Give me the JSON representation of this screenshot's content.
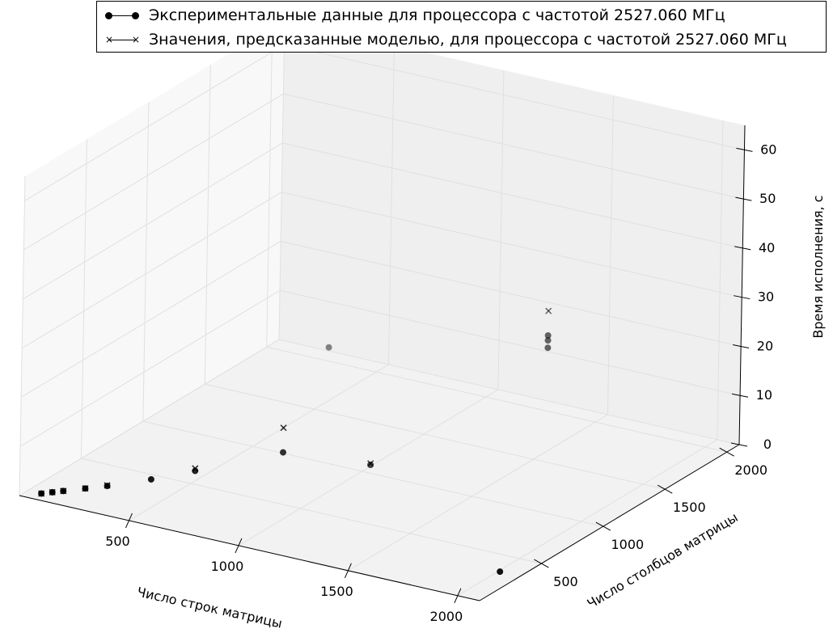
{
  "chart_data": {
    "type": "scatter",
    "title": "",
    "xlabel": "Число строк матрицы",
    "ylabel": "Число столбцов матрицы",
    "zlabel": "Время исполнения, с",
    "x_ticks": [
      "500",
      "1000",
      "1500",
      "2000"
    ],
    "y_ticks": [
      "500",
      "1000",
      "1500",
      "2000"
    ],
    "z_ticks": [
      "0",
      "10",
      "20",
      "30",
      "40",
      "50",
      "60"
    ],
    "xlim": [
      0,
      2100
    ],
    "ylim": [
      0,
      2100
    ],
    "zlim": [
      0,
      65
    ],
    "grid": true,
    "legend_position": "top",
    "series": [
      {
        "name": "Экспериментальные данные для процессора с частотой 2527.060 МГц",
        "marker": "circle",
        "points": [
          {
            "x": 64,
            "y": 64,
            "z": 0.1
          },
          {
            "x": 96,
            "y": 96,
            "z": 0.2
          },
          {
            "x": 128,
            "y": 128,
            "z": 0.3
          },
          {
            "x": 192,
            "y": 192,
            "z": 0.5
          },
          {
            "x": 256,
            "y": 256,
            "z": 0.7
          },
          {
            "x": 384,
            "y": 384,
            "z": 1.4
          },
          {
            "x": 512,
            "y": 512,
            "z": 2.5
          },
          {
            "x": 768,
            "y": 768,
            "z": 5.0
          },
          {
            "x": 1024,
            "y": 1024,
            "z": 1.2
          },
          {
            "x": 2048,
            "y": 256,
            "z": 1.5
          },
          {
            "x": 256,
            "y": 2048,
            "z": 1.8
          },
          {
            "x": 1536,
            "y": 1536,
            "z": 22.5
          },
          {
            "x": 1536,
            "y": 1536,
            "z": 24.0
          },
          {
            "x": 1536,
            "y": 1536,
            "z": 25.0
          }
        ]
      },
      {
        "name": "Значения, предсказанные моделью, для процессора с частотой 2527.060 МГц",
        "marker": "x",
        "points": [
          {
            "x": 64,
            "y": 64,
            "z": 0.1
          },
          {
            "x": 96,
            "y": 96,
            "z": 0.2
          },
          {
            "x": 128,
            "y": 128,
            "z": 0.3
          },
          {
            "x": 192,
            "y": 192,
            "z": 0.5
          },
          {
            "x": 256,
            "y": 256,
            "z": 0.8
          },
          {
            "x": 512,
            "y": 512,
            "z": 3.0
          },
          {
            "x": 768,
            "y": 768,
            "z": 10.0
          },
          {
            "x": 1024,
            "y": 1024,
            "z": 1.5
          },
          {
            "x": 1536,
            "y": 1536,
            "z": 30.0
          }
        ]
      }
    ]
  }
}
